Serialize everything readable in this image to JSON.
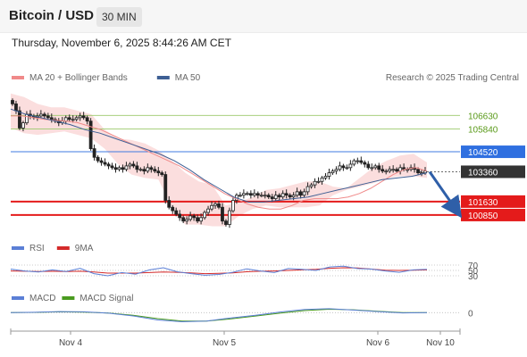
{
  "header": {
    "title": "Bitcoin / USD",
    "timeframe": "30 MIN",
    "datetime": "Thursday, November 6, 2025 8:44:26 AM CET",
    "copyright": "Research © 2025 Trading Central"
  },
  "chart_data": {
    "type": "candlestick",
    "main": {
      "legend": [
        {
          "label": "MA 20 + Bollinger Bands",
          "color": "#f08a8a"
        },
        {
          "label": "MA 50",
          "color": "#3e5f94"
        }
      ],
      "x_labels": [
        "Nov 4",
        "Nov 5",
        "Nov 6",
        "Nov 10"
      ],
      "ylim": [
        99500,
        108200
      ],
      "price_levels": [
        {
          "value": 106630,
          "label": "106630",
          "style": "green-thin"
        },
        {
          "value": 105840,
          "label": "105840",
          "style": "green-thin"
        },
        {
          "value": 104520,
          "label": "104520",
          "style": "blue-box"
        },
        {
          "value": 103360,
          "label": "103360",
          "style": "dark-box"
        },
        {
          "value": 101630,
          "label": "101630",
          "style": "red-box"
        },
        {
          "value": 100850,
          "label": "100850",
          "style": "red-box"
        }
      ],
      "current_price": 103360,
      "forecast": {
        "from": 103360,
        "to": 100850,
        "direction": "down"
      },
      "close": [
        107300,
        106900,
        105900,
        106200,
        106700,
        106600,
        106500,
        106600,
        106700,
        106600,
        106500,
        106400,
        106300,
        106200,
        106300,
        106500,
        106400,
        106400,
        106500,
        106600,
        106500,
        106300,
        104700,
        104200,
        104000,
        103900,
        103800,
        103700,
        103600,
        103500,
        103600,
        103500,
        103700,
        103800,
        103700,
        103500,
        103500,
        103400,
        103600,
        103500,
        103400,
        103300,
        103200,
        101700,
        101300,
        101100,
        100900,
        100700,
        100500,
        100600,
        100800,
        100700,
        100500,
        100700,
        101000,
        101200,
        101400,
        101500,
        101300,
        100500,
        100300,
        101100,
        101700,
        102000,
        102000,
        102100,
        102100,
        102000,
        102100,
        102000,
        102000,
        102000,
        101900,
        101800,
        102000,
        101900,
        102100,
        102000,
        101900,
        102000,
        102200,
        102000,
        102200,
        102500,
        102600,
        102800,
        102800,
        103000,
        103100,
        103300,
        103400,
        103500,
        103700,
        103600,
        103600,
        103800,
        104000,
        104000,
        103900,
        103800,
        103600,
        103600,
        103700,
        103500,
        103400,
        103400,
        103500,
        103500,
        103400,
        103600,
        103500,
        103500,
        103600,
        103500,
        103300,
        103300,
        103400
      ],
      "ma20": [
        106600,
        106600,
        106500,
        106400,
        106350,
        106300,
        106200,
        106000,
        105800,
        105500,
        105200,
        104900,
        104600,
        104300,
        104000,
        103700,
        103300,
        102900,
        102500,
        102100,
        101800,
        101500,
        101300,
        101200,
        101200,
        101400,
        101700,
        101800,
        101800,
        101800,
        101900,
        102100,
        102400,
        102800,
        103200,
        103500,
        103600,
        103400
      ],
      "bb_upper": [
        107900,
        107700,
        107300,
        107100,
        107100,
        106900,
        106700,
        105800,
        105300,
        105200,
        105000,
        104600,
        104000,
        103300,
        102800,
        102600,
        101400,
        101600,
        101900,
        102300,
        102400,
        102600,
        102800,
        102800,
        102500,
        102400,
        103000,
        103600,
        104000,
        104300,
        104400,
        103900
      ],
      "bb_lower": [
        105900,
        105600,
        105500,
        105600,
        105700,
        105500,
        105300,
        104700,
        103800,
        103200,
        103000,
        102900,
        101300,
        100300,
        100300,
        100200,
        100200,
        100800,
        101200,
        101400,
        101300,
        101300,
        101300,
        101400,
        102000,
        102300,
        102500,
        102700,
        103000,
        103100,
        103100,
        103000
      ],
      "ma50": [
        107000,
        106700,
        106500,
        106300,
        106100,
        105800,
        105600,
        105300,
        105000,
        104700,
        104400,
        104000,
        103500,
        102900,
        102400,
        101900,
        101600,
        101600,
        101700,
        101800,
        101900,
        102100,
        102300,
        102500,
        102700,
        102900,
        103000,
        103100,
        103300
      ]
    },
    "rsi": {
      "legend": [
        {
          "label": "RSI",
          "color": "#5b7fd6"
        },
        {
          "label": "9MA",
          "color": "#d42a2a"
        }
      ],
      "levels": [
        70,
        50,
        30
      ],
      "ylim": [
        0,
        100
      ],
      "rsi": [
        55,
        48,
        44,
        52,
        46,
        58,
        38,
        30,
        42,
        36,
        52,
        60,
        45,
        38,
        32,
        35,
        43,
        56,
        48,
        42,
        57,
        54,
        50,
        63,
        66,
        57,
        55,
        48,
        43,
        52,
        54
      ],
      "ma9": [
        48,
        47,
        46,
        47,
        46,
        47,
        44,
        40,
        40,
        40,
        42,
        44,
        43,
        41,
        38,
        39,
        41,
        45,
        47,
        48,
        50,
        52,
        54,
        58,
        60,
        59,
        55,
        51,
        50,
        51,
        52
      ]
    },
    "macd": {
      "legend": [
        {
          "label": "MACD",
          "color": "#5b7fd6"
        },
        {
          "label": "MACD Signal",
          "color": "#4a9b1f"
        }
      ],
      "zero_label": "0",
      "ylim": [
        -800,
        500
      ],
      "macd": [
        0,
        30,
        80,
        60,
        -40,
        -250,
        -560,
        -700,
        -640,
        -400,
        -200,
        50,
        240,
        300,
        200,
        80,
        -20,
        0
      ],
      "signal": [
        0,
        20,
        60,
        40,
        -30,
        -200,
        -460,
        -640,
        -650,
        -480,
        -260,
        -40,
        160,
        260,
        220,
        110,
        10,
        0
      ]
    }
  }
}
